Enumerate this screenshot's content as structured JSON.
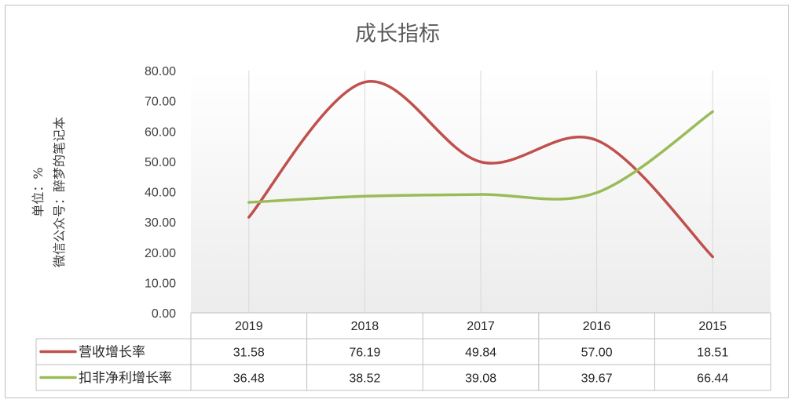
{
  "chart_data": {
    "type": "line",
    "title": "成长指标",
    "ylabel_lines": [
      "单位：%",
      "微信公众号：醉梦的笔记本"
    ],
    "categories": [
      "2019",
      "2018",
      "2017",
      "2016",
      "2015"
    ],
    "ylim": [
      0,
      80
    ],
    "yticks": [
      "0.00",
      "10.00",
      "20.00",
      "30.00",
      "40.00",
      "50.00",
      "60.00",
      "70.00",
      "80.00"
    ],
    "grid": "vertical",
    "legend": "data-table-left",
    "smooth": true,
    "series": [
      {
        "name": "营收增长率",
        "color": "#c0504d",
        "values": [
          31.58,
          76.19,
          49.84,
          57.0,
          18.51
        ],
        "labels": [
          "31.58",
          "76.19",
          "49.84",
          "57.00",
          "18.51"
        ]
      },
      {
        "name": "扣非净利增长率",
        "color": "#9bbb59",
        "values": [
          36.48,
          38.52,
          39.08,
          39.67,
          66.44
        ],
        "labels": [
          "36.48",
          "38.52",
          "39.08",
          "39.67",
          "66.44"
        ]
      }
    ]
  }
}
